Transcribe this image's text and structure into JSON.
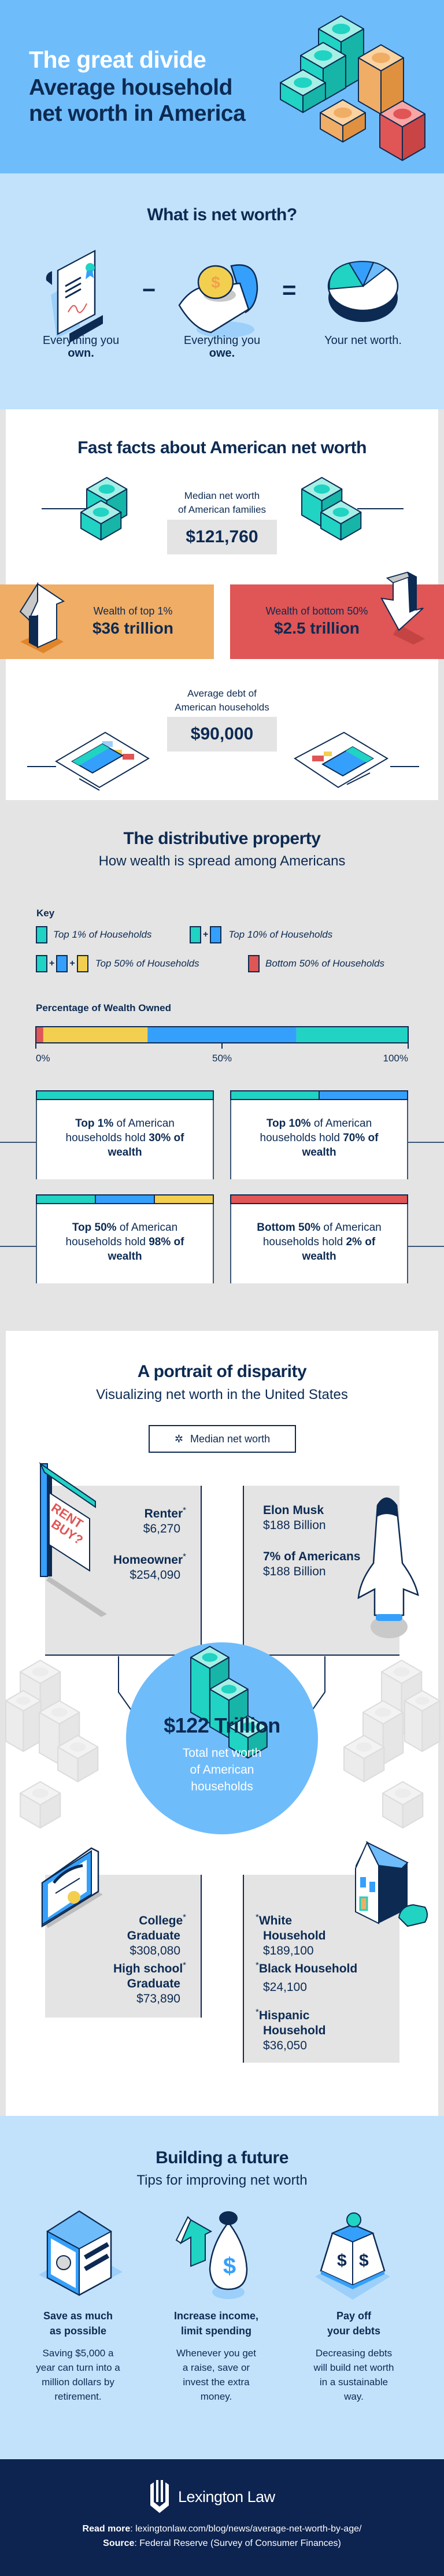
{
  "colors": {
    "header_bg": "#6fbcfb",
    "light_blue": "#c2e2fc",
    "navy": "#0c2a52",
    "footer_bg": "#0d2350",
    "grey": "#e4e4e4",
    "teal": "#20d3c3",
    "blue": "#35a0fc",
    "yellow": "#f3cf50",
    "red": "#e05555",
    "orange": "#f0ad66"
  },
  "header": {
    "title": "The great divide",
    "subtitle_line1": "Average household",
    "subtitle_line2": "net worth in America",
    "icon": "money-stacks"
  },
  "networth": {
    "title": "What is net worth?",
    "items": [
      {
        "text": "Everything you",
        "bold": "own.",
        "icon": "deed-document"
      },
      {
        "text": "Everything you",
        "bold": "owe.",
        "icon": "hand-with-coin"
      },
      {
        "text": "Your net worth.",
        "bold": "",
        "icon": "pie-chart"
      }
    ],
    "minus": "−",
    "equals": "="
  },
  "fast_facts": {
    "title": "Fast facts about American net worth",
    "median": {
      "label_line1": "Median net worth",
      "label_line2": "of American families",
      "value": "$121,760"
    },
    "top1": {
      "label": "Wealth of top 1%",
      "value": "$36 trillion"
    },
    "bottom50": {
      "label": "Wealth of bottom 50%",
      "value": "$2.5 trillion"
    },
    "debt": {
      "label_line1": "Average debt of",
      "label_line2": "American households",
      "value": "$90,000"
    }
  },
  "distribution": {
    "title": "The distributive property",
    "subtitle": "How wealth is spread among Americans",
    "key_title": "Key",
    "legend": [
      {
        "label": "Top 1% of Households",
        "swatches": [
          "teal"
        ]
      },
      {
        "label": "Top 10% of Households",
        "swatches": [
          "teal",
          "blue"
        ]
      },
      {
        "label": "Top 50% of Households",
        "swatches": [
          "teal",
          "blue",
          "yellow"
        ]
      },
      {
        "label": "Bottom 50% of Households",
        "swatches": [
          "red"
        ]
      }
    ],
    "plus": "+",
    "chart_data": {
      "type": "bar",
      "title": "Percentage of Wealth Owned",
      "orientation": "horizontal-stacked",
      "xlim": [
        0,
        100
      ],
      "ticks": [
        "0%",
        "50%",
        "100%"
      ],
      "tick_values": [
        0,
        50,
        100
      ],
      "segments": [
        {
          "group": "Bottom 50% of Households",
          "color": "red",
          "value": 2
        },
        {
          "group": "Top 50% (excluding top 10%)",
          "color": "yellow",
          "value": 28
        },
        {
          "group": "Top 10% (excluding top 1%)",
          "color": "blue",
          "value": 40
        },
        {
          "group": "Top 1% of Households",
          "color": "teal",
          "value": 30
        }
      ]
    },
    "cards": [
      {
        "strip": [
          "teal"
        ],
        "p1": "Top 1%",
        "p2": " of American households hold ",
        "p3": "30%",
        "p4": " of wealth"
      },
      {
        "strip": [
          "teal",
          "blue"
        ],
        "p1": "Top 10%",
        "p2": " of American households hold ",
        "p3": "70%",
        "p4": " of wealth"
      },
      {
        "strip": [
          "teal",
          "blue",
          "yellow"
        ],
        "p1": "Top 50%",
        "p2": " of American households hold ",
        "p3": "98%",
        "p4": " of wealth"
      },
      {
        "strip": [
          "red"
        ],
        "p1": "Bottom 50%",
        "p2": " of American households hold ",
        "p3": "2% of wealth",
        "p4": ""
      }
    ]
  },
  "portrait": {
    "title": "A portrait of disparity",
    "subtitle": "Visualizing net worth in the United States",
    "legend": {
      "symbol": "✲",
      "label": "Median net worth"
    },
    "asterisk": "*",
    "sign_text_1": "RENT",
    "sign_text_2": "BUY?",
    "housing": [
      {
        "label": "Renter",
        "value": "$6,270"
      },
      {
        "label": "Homeowner",
        "value": "$254,090"
      }
    ],
    "wealthy": [
      {
        "label": "Elon Musk",
        "value": "$188 Billion"
      },
      {
        "label": "7% of Americans",
        "value": "$188 Billion"
      }
    ],
    "center": {
      "value": "$122 Trillion",
      "label_line1": "Total net worth",
      "label_line2": "of American",
      "label_line3": "households"
    },
    "education": [
      {
        "label_line1": "College",
        "label_line2": "Graduate",
        "value": "$308,080"
      },
      {
        "label_line1": "High school",
        "label_line2": "Graduate",
        "value": "$73,890"
      }
    ],
    "race": [
      {
        "label_line1": "White",
        "label_line2": "Household",
        "value": "$189,100"
      },
      {
        "label_line1": "Black Household",
        "label_line2": "",
        "value": "$24,100"
      },
      {
        "label_line1": "Hispanic",
        "label_line2": "Household",
        "value": "$36,050"
      }
    ]
  },
  "tips": {
    "title": "Building a future",
    "subtitle": "Tips for improving net worth",
    "items": [
      {
        "h1": "Save as much",
        "h2": "as possible",
        "d1": "Saving $5,000 a",
        "d2": "year can turn into a",
        "d3": "million dollars by",
        "d4": "retirement.",
        "icon": "safe"
      },
      {
        "h1": "Increase income,",
        "h2": "limit spending",
        "d1": "Whenever you get",
        "d2": "a raise, save or",
        "d3": "invest the extra",
        "d4": "money.",
        "icon": "money-bag-arrow"
      },
      {
        "h1": "Pay off",
        "h2": "your debts",
        "d1": "Decreasing debts",
        "d2": "will build net worth",
        "d3": "in a sustainable",
        "d4": "way.",
        "icon": "weight"
      }
    ]
  },
  "footer": {
    "brand": "Lexington Law",
    "read_more_label": "Read more",
    "read_more_url": "lexingtonlaw.com/blog/news/average-net-worth-by-age/",
    "source_label": "Source",
    "source_text": "Federal Reserve (Survey of Consumer Finances)"
  }
}
